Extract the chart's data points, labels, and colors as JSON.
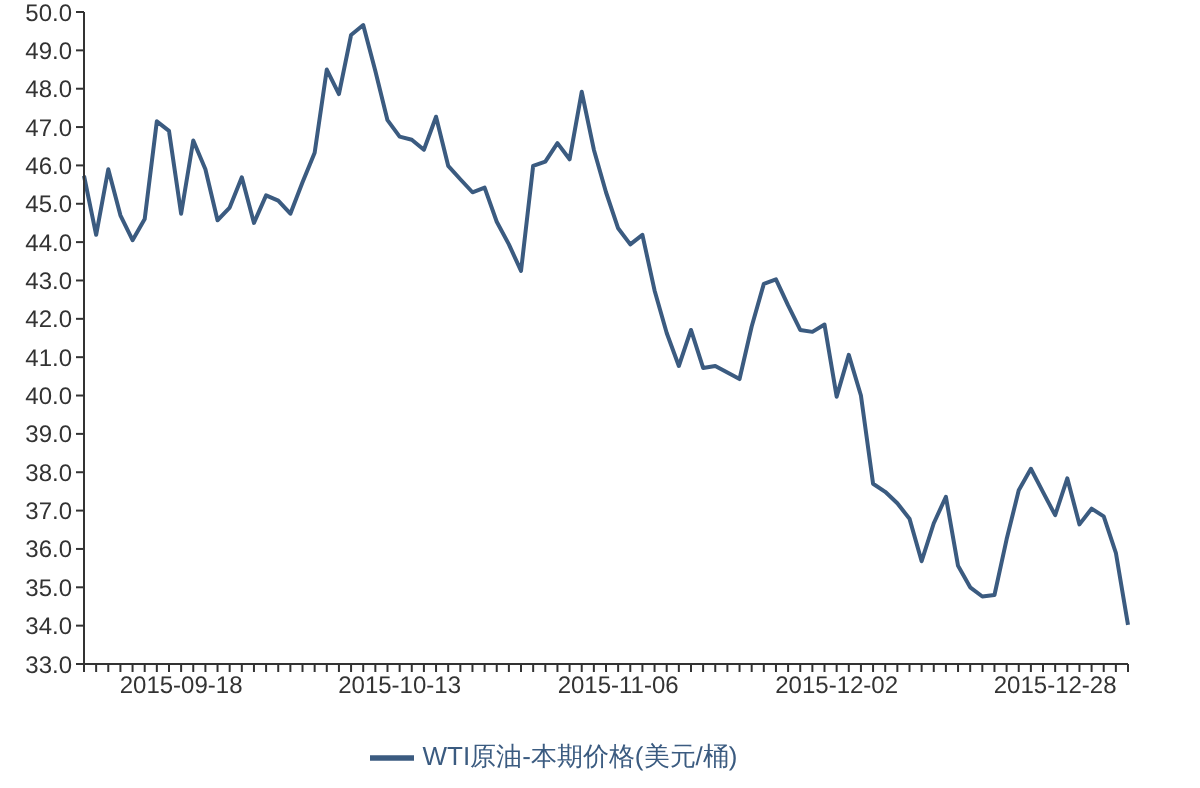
{
  "chart_data": {
    "type": "line",
    "categories": [
      null,
      null,
      null,
      null,
      null,
      null,
      null,
      null,
      "2015-09-18",
      null,
      null,
      null,
      null,
      null,
      null,
      null,
      null,
      null,
      null,
      null,
      null,
      null,
      null,
      null,
      null,
      null,
      "2015-10-13",
      null,
      null,
      null,
      null,
      null,
      null,
      null,
      null,
      null,
      null,
      null,
      null,
      null,
      null,
      null,
      null,
      null,
      "2015-11-06",
      null,
      null,
      null,
      null,
      null,
      null,
      null,
      null,
      null,
      null,
      null,
      null,
      null,
      null,
      null,
      null,
      null,
      "2015-12-02",
      null,
      null,
      null,
      null,
      null,
      null,
      null,
      null,
      null,
      null,
      null,
      null,
      null,
      null,
      null,
      null,
      null,
      "2015-12-28",
      null,
      null,
      null,
      null,
      null,
      null
    ],
    "series": [
      {
        "name": "WTI原油-本期价格(美元/桶)",
        "color": "#3b5b80",
        "values": [
          45.73,
          44.19,
          45.9,
          44.7,
          44.05,
          44.6,
          47.15,
          46.9,
          44.74,
          46.65,
          45.9,
          44.57,
          44.9,
          45.69,
          44.5,
          45.22,
          45.08,
          44.74,
          45.56,
          46.33,
          48.5,
          47.86,
          49.4,
          49.66,
          48.46,
          47.18,
          46.75,
          46.67,
          46.41,
          47.27,
          45.99,
          45.64,
          45.3,
          45.42,
          44.53,
          43.94,
          43.25,
          45.99,
          46.1,
          46.58,
          46.16,
          47.92,
          46.41,
          45.3,
          44.36,
          43.94,
          44.19,
          42.74,
          41.63,
          40.77,
          41.71,
          40.72,
          40.77,
          40.6,
          40.43,
          41.8,
          42.91,
          43.03,
          42.35,
          41.71,
          41.66,
          41.85,
          39.97,
          41.06,
          40.0,
          37.7,
          37.49,
          37.19,
          36.79,
          35.68,
          36.67,
          37.36,
          35.56,
          35.0,
          34.76,
          34.8,
          36.25,
          37.53,
          38.09,
          37.48,
          36.88,
          37.84,
          36.64,
          37.05,
          36.85,
          35.9,
          34.02
        ]
      }
    ],
    "ylim": [
      33,
      50
    ],
    "yticks": [
      {
        "value": 33,
        "label": "33.0"
      },
      {
        "value": 34,
        "label": "34.0"
      },
      {
        "value": 35,
        "label": "35.0"
      },
      {
        "value": 36,
        "label": "36.0"
      },
      {
        "value": 37,
        "label": "37.0"
      },
      {
        "value": 38,
        "label": "38.0"
      },
      {
        "value": 39,
        "label": "39.0"
      },
      {
        "value": 40,
        "label": "40.0"
      },
      {
        "value": 41,
        "label": "41.0"
      },
      {
        "value": 42,
        "label": "42.0"
      },
      {
        "value": 43,
        "label": "43.0"
      },
      {
        "value": 44,
        "label": "44.0"
      },
      {
        "value": 45,
        "label": "45.0"
      },
      {
        "value": 46,
        "label": "46.0"
      },
      {
        "value": 47,
        "label": "47.0"
      },
      {
        "value": 48,
        "label": "48.0"
      },
      {
        "value": 49,
        "label": "49.0"
      },
      {
        "value": 50,
        "label": "50.0"
      }
    ],
    "grid": false,
    "legend": "bottom",
    "marker": "none",
    "line_style": "solid"
  }
}
